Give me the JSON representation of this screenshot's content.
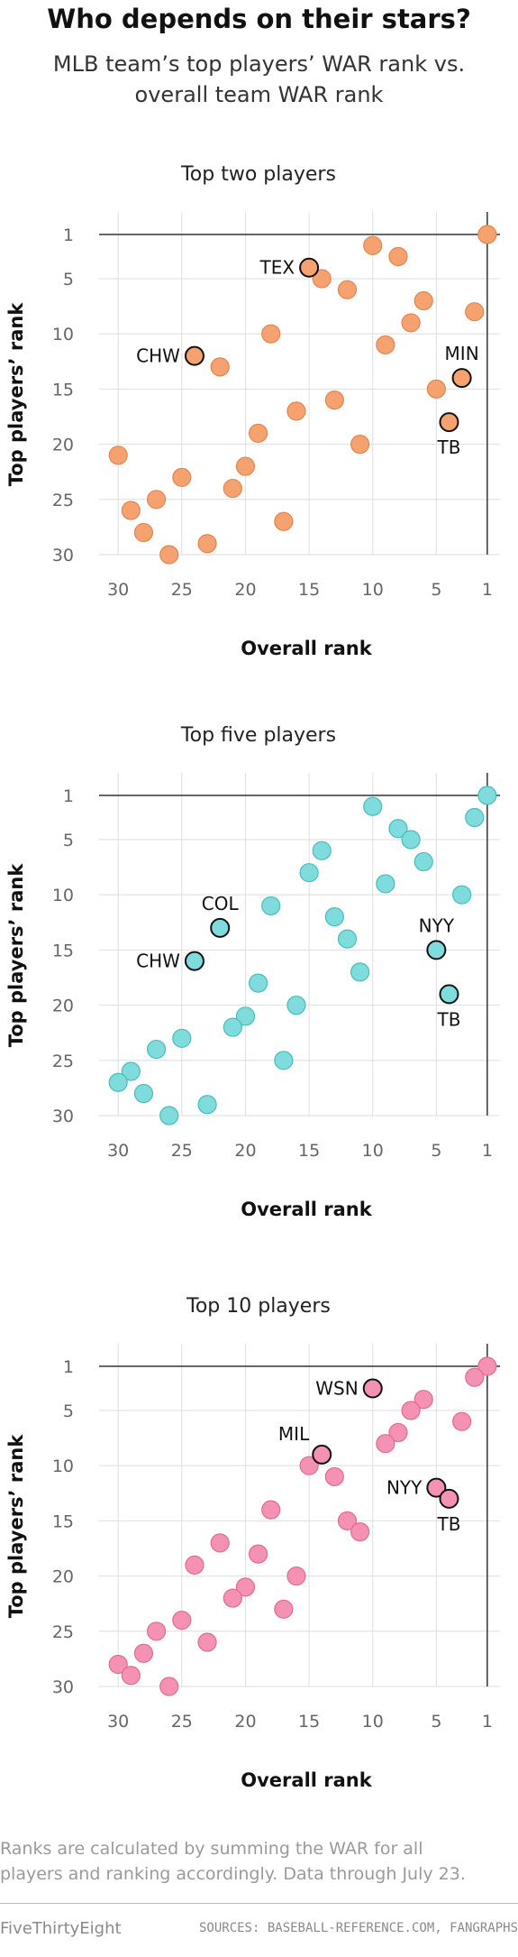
{
  "title": "Who depends on their stars?",
  "subtitle": [
    "MLB team’s top players’ WAR rank vs.",
    "overall team WAR rank"
  ],
  "footnote": [
    "Ranks are calculated by summing the WAR for all",
    "players and ranking accordingly. Data through July 23."
  ],
  "brand": "FiveThirtyEight",
  "sources": "SOURCES: BASEBALL-REFERENCE.COM, FANGRAPHS",
  "chart_data": [
    {
      "type": "scatter",
      "title": "Top two players",
      "xlabel": "Overall rank",
      "ylabel": "Top players’ rank",
      "xlim": [
        31.5,
        0
      ],
      "ylim": [
        1,
        30
      ],
      "x_reversed": true,
      "y_reversed": true,
      "x_ticks": [
        "30",
        "25",
        "20",
        "15",
        "10",
        "5",
        "1"
      ],
      "y_ticks": [
        "1",
        "5",
        "10",
        "15",
        "20",
        "25",
        "30"
      ],
      "grid": true,
      "color": "#f5a270",
      "stroke": "#e0864d",
      "points": [
        {
          "x": 1,
          "y": 1
        },
        {
          "x": 10,
          "y": 2
        },
        {
          "x": 8,
          "y": 3
        },
        {
          "x": 14,
          "y": 5
        },
        {
          "x": 12,
          "y": 6
        },
        {
          "x": 6,
          "y": 7
        },
        {
          "x": 2,
          "y": 8
        },
        {
          "x": 7,
          "y": 9
        },
        {
          "x": 18,
          "y": 10
        },
        {
          "x": 9,
          "y": 11
        },
        {
          "x": 22,
          "y": 13
        },
        {
          "x": 5,
          "y": 15
        },
        {
          "x": 13,
          "y": 16
        },
        {
          "x": 16,
          "y": 17
        },
        {
          "x": 19,
          "y": 19
        },
        {
          "x": 11,
          "y": 20
        },
        {
          "x": 30,
          "y": 21
        },
        {
          "x": 20,
          "y": 22
        },
        {
          "x": 25,
          "y": 23
        },
        {
          "x": 21,
          "y": 24
        },
        {
          "x": 27,
          "y": 25
        },
        {
          "x": 29,
          "y": 26
        },
        {
          "x": 17,
          "y": 27
        },
        {
          "x": 28,
          "y": 28
        },
        {
          "x": 23,
          "y": 29
        },
        {
          "x": 26,
          "y": 30
        },
        {
          "x": 15,
          "y": 4,
          "label": "TEX",
          "label_pos": "left"
        },
        {
          "x": 24,
          "y": 12,
          "label": "CHW",
          "label_pos": "left"
        },
        {
          "x": 3,
          "y": 14,
          "label": "MIN",
          "label_pos": "above"
        },
        {
          "x": 4,
          "y": 18,
          "label": "TB",
          "label_pos": "below"
        }
      ]
    },
    {
      "type": "scatter",
      "title": "Top five players",
      "xlabel": "Overall rank",
      "ylabel": "Top players’ rank",
      "xlim": [
        31.5,
        0
      ],
      "ylim": [
        1,
        30
      ],
      "x_reversed": true,
      "y_reversed": true,
      "x_ticks": [
        "30",
        "25",
        "20",
        "15",
        "10",
        "5",
        "1"
      ],
      "y_ticks": [
        "1",
        "5",
        "10",
        "15",
        "20",
        "25",
        "30"
      ],
      "grid": true,
      "color": "#80dcdc",
      "stroke": "#45bcbc",
      "points": [
        {
          "x": 1,
          "y": 1
        },
        {
          "x": 10,
          "y": 2
        },
        {
          "x": 2,
          "y": 3
        },
        {
          "x": 8,
          "y": 4
        },
        {
          "x": 7,
          "y": 5
        },
        {
          "x": 14,
          "y": 6
        },
        {
          "x": 6,
          "y": 7
        },
        {
          "x": 15,
          "y": 8
        },
        {
          "x": 9,
          "y": 9
        },
        {
          "x": 3,
          "y": 10
        },
        {
          "x": 18,
          "y": 11
        },
        {
          "x": 13,
          "y": 12
        },
        {
          "x": 12,
          "y": 14
        },
        {
          "x": 11,
          "y": 17
        },
        {
          "x": 19,
          "y": 18
        },
        {
          "x": 16,
          "y": 20
        },
        {
          "x": 20,
          "y": 21
        },
        {
          "x": 21,
          "y": 22
        },
        {
          "x": 25,
          "y": 23
        },
        {
          "x": 27,
          "y": 24
        },
        {
          "x": 17,
          "y": 25
        },
        {
          "x": 29,
          "y": 26
        },
        {
          "x": 30,
          "y": 27
        },
        {
          "x": 28,
          "y": 28
        },
        {
          "x": 23,
          "y": 29
        },
        {
          "x": 26,
          "y": 30
        },
        {
          "x": 22,
          "y": 13,
          "label": "COL",
          "label_pos": "above"
        },
        {
          "x": 24,
          "y": 16,
          "label": "CHW",
          "label_pos": "left"
        },
        {
          "x": 5,
          "y": 15,
          "label": "NYY",
          "label_pos": "above"
        },
        {
          "x": 4,
          "y": 19,
          "label": "TB",
          "label_pos": "below"
        }
      ]
    },
    {
      "type": "scatter",
      "title": "Top 10 players",
      "xlabel": "Overall rank",
      "ylabel": "Top players’ rank",
      "xlim": [
        31.5,
        0
      ],
      "ylim": [
        1,
        30
      ],
      "x_reversed": true,
      "y_reversed": true,
      "x_ticks": [
        "30",
        "25",
        "20",
        "15",
        "10",
        "5",
        "1"
      ],
      "y_ticks": [
        "1",
        "5",
        "10",
        "15",
        "20",
        "25",
        "30"
      ],
      "grid": true,
      "color": "#f592b4",
      "stroke": "#e06a93",
      "points": [
        {
          "x": 1,
          "y": 1
        },
        {
          "x": 2,
          "y": 2
        },
        {
          "x": 6,
          "y": 4
        },
        {
          "x": 7,
          "y": 5
        },
        {
          "x": 3,
          "y": 6
        },
        {
          "x": 8,
          "y": 7
        },
        {
          "x": 9,
          "y": 8
        },
        {
          "x": 15,
          "y": 10
        },
        {
          "x": 13,
          "y": 11
        },
        {
          "x": 18,
          "y": 14
        },
        {
          "x": 12,
          "y": 15
        },
        {
          "x": 11,
          "y": 16
        },
        {
          "x": 22,
          "y": 17
        },
        {
          "x": 19,
          "y": 18
        },
        {
          "x": 24,
          "y": 19
        },
        {
          "x": 16,
          "y": 20
        },
        {
          "x": 20,
          "y": 21
        },
        {
          "x": 21,
          "y": 22
        },
        {
          "x": 17,
          "y": 23
        },
        {
          "x": 25,
          "y": 24
        },
        {
          "x": 27,
          "y": 25
        },
        {
          "x": 23,
          "y": 26
        },
        {
          "x": 28,
          "y": 27
        },
        {
          "x": 30,
          "y": 28
        },
        {
          "x": 29,
          "y": 29
        },
        {
          "x": 26,
          "y": 30
        },
        {
          "x": 10,
          "y": 3,
          "label": "WSN",
          "label_pos": "left"
        },
        {
          "x": 14,
          "y": 9,
          "label": "MIL",
          "label_pos": "aboveleft"
        },
        {
          "x": 5,
          "y": 12,
          "label": "NYY",
          "label_pos": "left"
        },
        {
          "x": 4,
          "y": 13,
          "label": "TB",
          "label_pos": "below"
        }
      ]
    }
  ]
}
